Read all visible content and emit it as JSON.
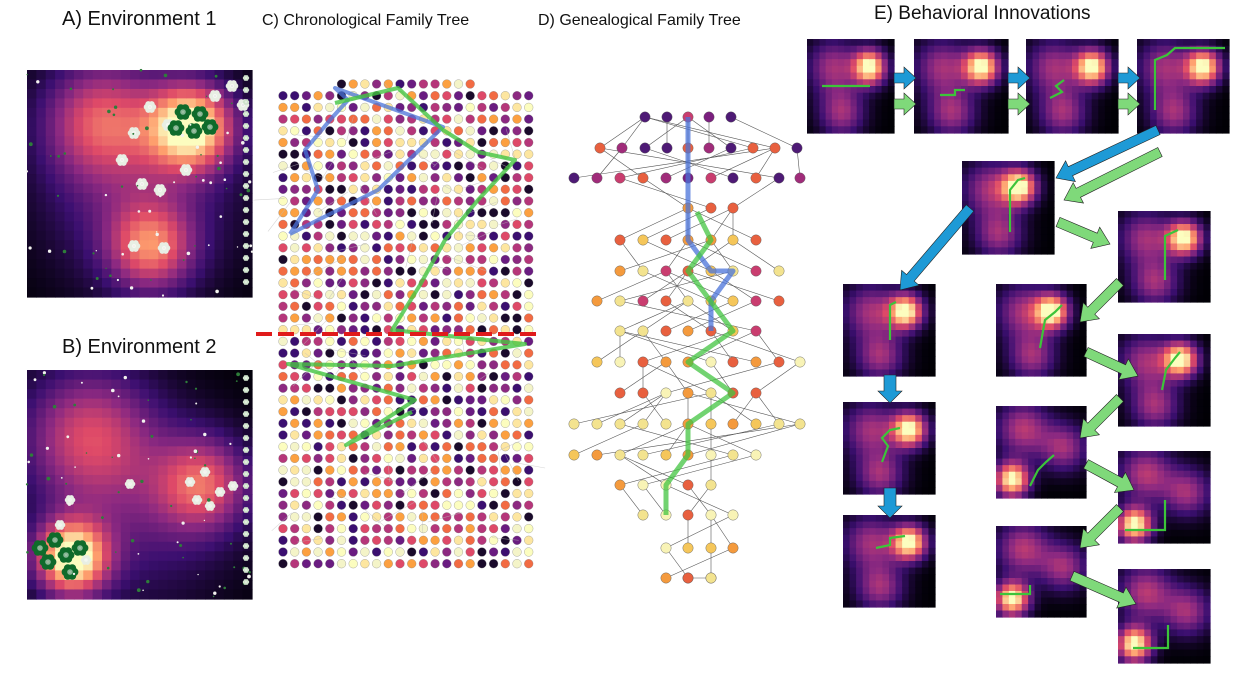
{
  "panels": {
    "a": {
      "title": "A) Environment 1"
    },
    "b": {
      "title": "B) Environment 2"
    },
    "c": {
      "title": "C) Chronological Family Tree"
    },
    "d": {
      "title": "D) Genealogical Family Tree"
    },
    "e": {
      "title": "E) Behavioral Innovations"
    }
  },
  "colors": {
    "magma": [
      "#000004",
      "#3b0f70",
      "#8c2981",
      "#de4968",
      "#fe9f6d",
      "#fcfdbf"
    ],
    "lineage_blue": "#4a73d9",
    "lineage_green": "#43c441",
    "arrow_blue": "#1e9ad6",
    "arrow_green": "#7fd97a",
    "separator_red": "#e01b1b",
    "trajectory_green": "#3cc43a"
  },
  "icons": [
    "flower-icon",
    "arrow-right-icon",
    "arrow-down-icon",
    "arrow-diagonal-icon"
  ]
}
